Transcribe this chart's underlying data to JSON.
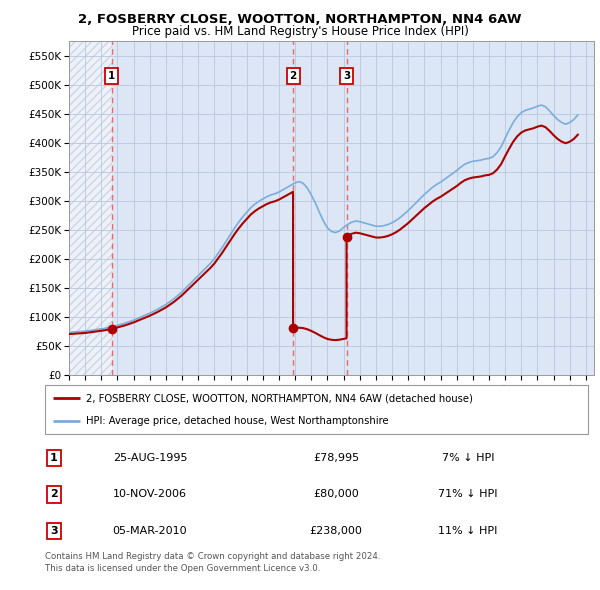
{
  "title_line1": "2, FOSBERRY CLOSE, WOOTTON, NORTHAMPTON, NN4 6AW",
  "title_line2": "Price paid vs. HM Land Registry's House Price Index (HPI)",
  "background_color": "#ffffff",
  "plot_bg_color": "#dce6f5",
  "grid_color": "#b8c8e0",
  "hpi_color": "#7aaddd",
  "price_color": "#aa0000",
  "vline_color": "#ee6666",
  "ylim": [
    0,
    575000
  ],
  "yticks": [
    0,
    50000,
    100000,
    150000,
    200000,
    250000,
    300000,
    350000,
    400000,
    450000,
    500000,
    550000
  ],
  "ytick_labels": [
    "£0",
    "£50K",
    "£100K",
    "£150K",
    "£200K",
    "£250K",
    "£300K",
    "£350K",
    "£400K",
    "£450K",
    "£500K",
    "£550K"
  ],
  "xlim_start": 1993.0,
  "xlim_end": 2025.5,
  "xtick_years": [
    1993,
    1994,
    1995,
    1996,
    1997,
    1998,
    1999,
    2000,
    2001,
    2002,
    2003,
    2004,
    2005,
    2006,
    2007,
    2008,
    2009,
    2010,
    2011,
    2012,
    2013,
    2014,
    2015,
    2016,
    2017,
    2018,
    2019,
    2020,
    2021,
    2022,
    2023,
    2024,
    2025
  ],
  "sale_dates": [
    1995.65,
    2006.87,
    2010.18
  ],
  "sale_prices": [
    78995,
    80000,
    238000
  ],
  "sale_labels": [
    "1",
    "2",
    "3"
  ],
  "legend_line1": "2, FOSBERRY CLOSE, WOOTTON, NORTHAMPTON, NN4 6AW (detached house)",
  "legend_line2": "HPI: Average price, detached house, West Northamptonshire",
  "table_data": [
    [
      "1",
      "25-AUG-1995",
      "£78,995",
      "7% ↓ HPI"
    ],
    [
      "2",
      "10-NOV-2006",
      "£80,000",
      "71% ↓ HPI"
    ],
    [
      "3",
      "05-MAR-2010",
      "£238,000",
      "11% ↓ HPI"
    ]
  ],
  "footnote": "Contains HM Land Registry data © Crown copyright and database right 2024.\nThis data is licensed under the Open Government Licence v3.0.",
  "hpi_x": [
    1993.0,
    1993.25,
    1993.5,
    1993.75,
    1994.0,
    1994.25,
    1994.5,
    1994.75,
    1995.0,
    1995.25,
    1995.5,
    1995.75,
    1996.0,
    1996.25,
    1996.5,
    1996.75,
    1997.0,
    1997.25,
    1997.5,
    1997.75,
    1998.0,
    1998.25,
    1998.5,
    1998.75,
    1999.0,
    1999.25,
    1999.5,
    1999.75,
    2000.0,
    2000.25,
    2000.5,
    2000.75,
    2001.0,
    2001.25,
    2001.5,
    2001.75,
    2002.0,
    2002.25,
    2002.5,
    2002.75,
    2003.0,
    2003.25,
    2003.5,
    2003.75,
    2004.0,
    2004.25,
    2004.5,
    2004.75,
    2005.0,
    2005.25,
    2005.5,
    2005.75,
    2006.0,
    2006.25,
    2006.5,
    2006.75,
    2007.0,
    2007.25,
    2007.5,
    2007.75,
    2008.0,
    2008.25,
    2008.5,
    2008.75,
    2009.0,
    2009.25,
    2009.5,
    2009.75,
    2010.0,
    2010.25,
    2010.5,
    2010.75,
    2011.0,
    2011.25,
    2011.5,
    2011.75,
    2012.0,
    2012.25,
    2012.5,
    2012.75,
    2013.0,
    2013.25,
    2013.5,
    2013.75,
    2014.0,
    2014.25,
    2014.5,
    2014.75,
    2015.0,
    2015.25,
    2015.5,
    2015.75,
    2016.0,
    2016.25,
    2016.5,
    2016.75,
    2017.0,
    2017.25,
    2017.5,
    2017.75,
    2018.0,
    2018.25,
    2018.5,
    2018.75,
    2019.0,
    2019.25,
    2019.5,
    2019.75,
    2020.0,
    2020.25,
    2020.5,
    2020.75,
    2021.0,
    2021.25,
    2021.5,
    2021.75,
    2022.0,
    2022.25,
    2022.5,
    2022.75,
    2023.0,
    2023.25,
    2023.5,
    2023.75,
    2024.0,
    2024.25,
    2024.5
  ],
  "hpi_y": [
    73000,
    73500,
    74000,
    74500,
    75000,
    76000,
    77000,
    78000,
    79000,
    80000,
    81500,
    83000,
    85000,
    87000,
    89000,
    91500,
    94000,
    97000,
    100000,
    103000,
    106000,
    109500,
    113000,
    117000,
    121000,
    126000,
    131000,
    137000,
    143000,
    150000,
    157000,
    164000,
    171000,
    178000,
    185000,
    192000,
    200000,
    210000,
    220000,
    231000,
    242000,
    253000,
    263000,
    272000,
    280000,
    288000,
    294000,
    299000,
    303000,
    307000,
    310000,
    312000,
    315000,
    319000,
    323000,
    327000,
    331000,
    333000,
    330000,
    322000,
    310000,
    296000,
    280000,
    265000,
    253000,
    247000,
    245000,
    248000,
    254000,
    259000,
    263000,
    265000,
    264000,
    262000,
    260000,
    258000,
    256000,
    256000,
    257000,
    259000,
    262000,
    266000,
    271000,
    277000,
    283000,
    290000,
    297000,
    304000,
    311000,
    317000,
    323000,
    328000,
    332000,
    337000,
    342000,
    347000,
    352000,
    358000,
    363000,
    366000,
    368000,
    369000,
    370000,
    372000,
    373000,
    376000,
    383000,
    393000,
    408000,
    422000,
    435000,
    445000,
    452000,
    456000,
    458000,
    460000,
    463000,
    465000,
    462000,
    455000,
    447000,
    440000,
    435000,
    432000,
    435000,
    440000,
    448000
  ]
}
